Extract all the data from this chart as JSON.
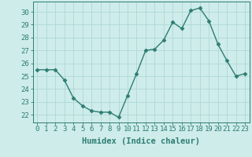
{
  "x": [
    0,
    1,
    2,
    3,
    4,
    5,
    6,
    7,
    8,
    9,
    10,
    11,
    12,
    13,
    14,
    15,
    16,
    17,
    18,
    19,
    20,
    21,
    22,
    23
  ],
  "y": [
    25.5,
    25.5,
    25.5,
    24.7,
    23.3,
    22.7,
    22.3,
    22.2,
    22.2,
    21.8,
    23.5,
    25.2,
    27.0,
    27.1,
    27.8,
    29.2,
    28.7,
    30.1,
    30.3,
    29.3,
    27.5,
    26.2,
    25.0,
    25.2
  ],
  "line_color": "#2d7d72",
  "marker": "D",
  "marker_size": 2.5,
  "line_width": 1.0,
  "bg_color": "#ceecea",
  "grid_color": "#aed8d5",
  "xlabel": "Humidex (Indice chaleur)",
  "xlabel_fontsize": 7.5,
  "xtick_labels": [
    "0",
    "1",
    "2",
    "3",
    "4",
    "5",
    "6",
    "7",
    "8",
    "9",
    "10",
    "11",
    "12",
    "13",
    "14",
    "15",
    "16",
    "17",
    "18",
    "19",
    "20",
    "21",
    "22",
    "23"
  ],
  "ytick_labels": [
    "22",
    "23",
    "24",
    "25",
    "26",
    "27",
    "28",
    "29",
    "30"
  ],
  "ylim": [
    21.4,
    30.8
  ],
  "xlim": [
    -0.5,
    23.5
  ],
  "tick_fontsize": 6.5
}
